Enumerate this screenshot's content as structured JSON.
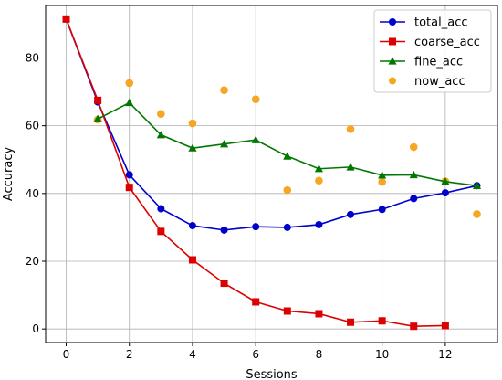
{
  "chart_data": {
    "type": "line",
    "xlabel": "Sessions",
    "ylabel": "Accuracy",
    "xlim": [
      -0.65,
      13.65
    ],
    "ylim": [
      -4,
      95.5
    ],
    "xticks": [
      0,
      2,
      4,
      6,
      8,
      10,
      12
    ],
    "yticks": [
      0,
      20,
      40,
      60,
      80
    ],
    "grid": true,
    "legend": "top-right",
    "series": [
      {
        "name": "total_acc",
        "kind": "line",
        "marker": "circle",
        "color": "#0000cc",
        "x": [
          0,
          1,
          2,
          3,
          4,
          5,
          6,
          7,
          8,
          9,
          10,
          11,
          12,
          13
        ],
        "y": [
          91.5,
          67.0,
          45.5,
          35.5,
          30.5,
          29.2,
          30.2,
          30.0,
          30.8,
          33.8,
          35.3,
          38.5,
          40.2,
          42.3
        ]
      },
      {
        "name": "coarse_acc",
        "kind": "line",
        "marker": "square",
        "color": "#dd0000",
        "x": [
          0,
          1,
          2,
          3,
          4,
          5,
          6,
          7,
          8,
          9,
          10,
          11,
          12
        ],
        "y": [
          91.5,
          67.5,
          41.8,
          28.8,
          20.4,
          13.5,
          8.0,
          5.3,
          4.5,
          2.0,
          2.4,
          0.8,
          1.0
        ]
      },
      {
        "name": "fine_acc",
        "kind": "line",
        "marker": "triangle",
        "color": "#007700",
        "x": [
          1,
          2,
          3,
          4,
          5,
          6,
          7,
          8,
          9,
          10,
          11,
          12,
          13
        ],
        "y": [
          62.0,
          66.8,
          57.3,
          53.4,
          54.6,
          55.8,
          51.0,
          47.3,
          47.8,
          45.4,
          45.5,
          43.5,
          42.3
        ]
      },
      {
        "name": "now_acc",
        "kind": "scatter",
        "marker": "circle",
        "color": "#f5a623",
        "x": [
          1,
          2,
          3,
          4,
          5,
          6,
          7,
          8,
          9,
          10,
          11,
          12,
          13
        ],
        "y": [
          61.8,
          72.6,
          63.5,
          60.7,
          70.5,
          67.8,
          41.0,
          43.8,
          59.0,
          43.4,
          53.7,
          43.6,
          33.9
        ]
      }
    ]
  }
}
